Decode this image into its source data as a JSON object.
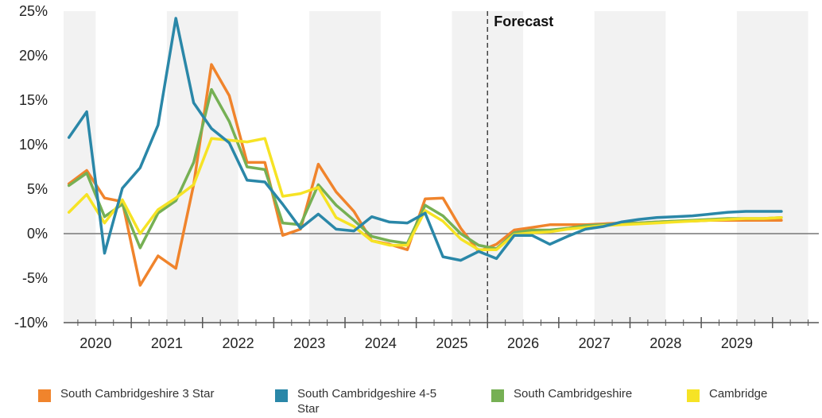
{
  "chart_data": {
    "type": "line",
    "title": "",
    "xlabel": "",
    "ylabel": "",
    "x_start": 2019.625,
    "x_step": 0.25,
    "xlim": [
      2019.55,
      2030.15
    ],
    "ylim": [
      -10,
      25
    ],
    "y_ticks": [
      -10,
      -5,
      0,
      5,
      10,
      15,
      20,
      25
    ],
    "y_tick_labels": [
      "-10%",
      "-5%",
      "0%",
      "5%",
      "10%",
      "15%",
      "20%",
      "25%"
    ],
    "x_tick_labels": [
      "2020",
      "2021",
      "2022",
      "2023",
      "2024",
      "2025",
      "2026",
      "2027",
      "2028",
      "2029"
    ],
    "x_tick_values": [
      2020,
      2021,
      2022,
      2023,
      2024,
      2025,
      2026,
      2027,
      2028,
      2029
    ],
    "forecast_start": 2025.5,
    "forecast_label": "Forecast",
    "grid": false,
    "legend_position": "bottom",
    "series": [
      {
        "name": "South Cambridgeshire 3 Star",
        "color": "#f0842c",
        "values": [
          5.6,
          7.1,
          4.0,
          3.6,
          -5.8,
          -2.5,
          -3.9,
          5.5,
          19.0,
          15.5,
          8.0,
          8.0,
          -0.2,
          0.5,
          7.8,
          4.7,
          2.5,
          -0.8,
          -1.2,
          -1.8,
          3.9,
          4.0,
          0.6,
          -2.0,
          -1.2,
          0.4,
          0.7,
          1.0,
          1.0,
          1.0,
          1.1,
          1.2,
          1.2,
          1.3,
          1.4,
          1.4,
          1.5,
          1.5,
          1.5,
          1.5,
          1.5
        ]
      },
      {
        "name": "South Cambridgeshire 4-5 Star",
        "color": "#2a87a8",
        "values": [
          10.8,
          13.7,
          -2.2,
          5.1,
          7.4,
          12.2,
          24.2,
          14.7,
          11.8,
          10.2,
          6.0,
          5.8,
          3.3,
          0.6,
          2.2,
          0.5,
          0.3,
          1.9,
          1.3,
          1.2,
          2.3,
          -2.6,
          -3.0,
          -2.0,
          -2.8,
          -0.2,
          -0.2,
          -1.2,
          -0.3,
          0.5,
          0.8,
          1.3,
          1.6,
          1.8,
          1.9,
          2.0,
          2.2,
          2.4,
          2.5,
          2.5,
          2.5
        ]
      },
      {
        "name": "South Cambridgeshire",
        "color": "#76b054",
        "values": [
          5.4,
          6.8,
          1.9,
          3.3,
          -1.6,
          2.3,
          3.7,
          8.0,
          16.2,
          12.6,
          7.5,
          7.2,
          1.2,
          1.0,
          5.5,
          3.2,
          1.5,
          -0.3,
          -0.8,
          -1.1,
          3.2,
          2.0,
          0.0,
          -1.3,
          -1.7,
          0.1,
          0.4,
          0.4,
          0.6,
          0.9,
          1.0,
          1.1,
          1.2,
          1.3,
          1.4,
          1.5,
          1.6,
          1.7,
          1.7,
          1.7,
          1.8
        ]
      },
      {
        "name": "Cambridge",
        "color": "#f6e325",
        "values": [
          2.4,
          4.4,
          1.2,
          3.8,
          0.0,
          2.7,
          4.0,
          5.5,
          10.7,
          10.5,
          10.3,
          10.7,
          4.2,
          4.5,
          5.2,
          1.8,
          0.8,
          -0.8,
          -1.3,
          -1.3,
          2.6,
          1.4,
          -0.6,
          -1.8,
          -1.8,
          -0.1,
          0.1,
          0.2,
          0.5,
          0.7,
          0.9,
          1.0,
          1.1,
          1.2,
          1.3,
          1.4,
          1.5,
          1.6,
          1.7,
          1.7,
          1.8
        ]
      }
    ]
  }
}
